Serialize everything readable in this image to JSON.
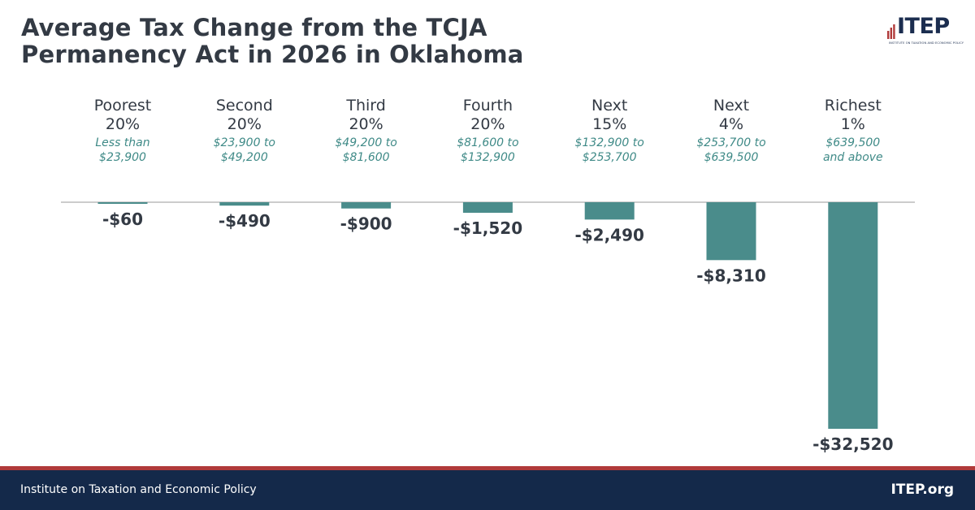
{
  "title_lines": [
    "Average Tax Change from the TCJA",
    "Permanency Act in 2026 in Oklahoma"
  ],
  "logo": {
    "text": "ITEP",
    "subtext": "INSTITUTE ON TAXATION AND ECONOMIC POLICY",
    "accent_color": "#b03a3a",
    "brand_color": "#1b2d4f"
  },
  "chart_data": {
    "type": "bar",
    "title": "Average Tax Change from the TCJA Permanency Act in 2026 in Oklahoma",
    "categories": [
      {
        "name_lines": [
          "Poorest",
          "20%"
        ],
        "range_lines": [
          "Less than",
          "$23,900"
        ]
      },
      {
        "name_lines": [
          "Second",
          "20%"
        ],
        "range_lines": [
          "$23,900 to",
          "$49,200"
        ]
      },
      {
        "name_lines": [
          "Third",
          "20%"
        ],
        "range_lines": [
          "$49,200 to",
          "$81,600"
        ]
      },
      {
        "name_lines": [
          "Fourth",
          "20%"
        ],
        "range_lines": [
          "$81,600 to",
          "$132,900"
        ]
      },
      {
        "name_lines": [
          "Next",
          "15%"
        ],
        "range_lines": [
          "$132,900 to",
          "$253,700"
        ]
      },
      {
        "name_lines": [
          "Next",
          "4%"
        ],
        "range_lines": [
          "$253,700 to",
          "$639,500"
        ]
      },
      {
        "name_lines": [
          "Richest",
          "1%"
        ],
        "range_lines": [
          "$639,500",
          "and above"
        ]
      }
    ],
    "values": [
      -60,
      -490,
      -900,
      -1520,
      -2490,
      -8310,
      -32520
    ],
    "value_labels": [
      "-$60",
      "-$490",
      "-$900",
      "-$1,520",
      "-$2,490",
      "-$8,310",
      "-$32,520"
    ],
    "ylim": [
      -32520,
      0
    ],
    "grid": false,
    "bar_color": "#4a8c8b",
    "baseline_color": "#999999",
    "range_text_color": "#3f8a87"
  },
  "footer": {
    "left": "Institute on Taxation and Economic Policy",
    "right": "ITEP.org",
    "bg_color": "#14294a",
    "stripe_color": "#b03a3a"
  }
}
